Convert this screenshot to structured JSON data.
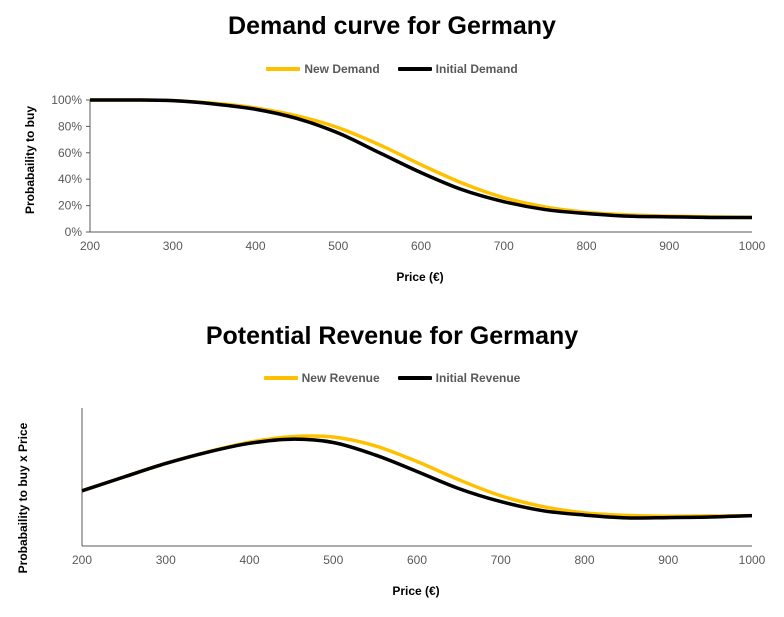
{
  "colors": {
    "new": "#FFC000",
    "initial": "#000000",
    "axis": "#595959"
  },
  "chart_data": [
    {
      "type": "line",
      "title": "Demand curve for Germany",
      "xlabel": "Price (€)",
      "ylabel": "Probabaility to buy",
      "xlim": [
        200,
        1000
      ],
      "ylim": [
        0,
        100
      ],
      "x_ticks": [
        "200",
        "300",
        "400",
        "500",
        "600",
        "700",
        "800",
        "900",
        "1000"
      ],
      "y_ticks": [
        "0%",
        "20%",
        "40%",
        "60%",
        "80%",
        "100%"
      ],
      "grid": false,
      "legend": "top",
      "series": [
        {
          "name": "New Demand",
          "x": [
            200,
            250,
            300,
            350,
            400,
            450,
            500,
            550,
            600,
            650,
            700,
            750,
            800,
            850,
            900,
            950,
            1000
          ],
          "values": [
            100,
            100,
            99.5,
            97.5,
            94,
            88,
            79,
            66,
            51,
            37,
            26,
            19,
            15,
            13,
            12,
            11.5,
            11
          ]
        },
        {
          "name": "Initial Demand",
          "x": [
            200,
            250,
            300,
            350,
            400,
            450,
            500,
            550,
            600,
            650,
            700,
            750,
            800,
            850,
            900,
            950,
            1000
          ],
          "values": [
            100,
            100,
            99.5,
            97,
            93,
            86,
            75,
            60,
            45,
            32,
            23,
            17,
            14,
            12,
            11.5,
            11,
            11
          ]
        }
      ]
    },
    {
      "type": "line",
      "title": "Potential Revenue for Germany",
      "xlabel": "Price (€)",
      "ylabel": "Probabaility to buy x Price",
      "xlim": [
        200,
        1000
      ],
      "ylim": [
        0,
        500
      ],
      "x_ticks": [
        "200",
        "300",
        "400",
        "500",
        "600",
        "700",
        "800",
        "900",
        "1000"
      ],
      "y_ticks": [],
      "grid": false,
      "legend": "top",
      "series": [
        {
          "name": "New Revenue",
          "x": [
            200,
            250,
            300,
            350,
            400,
            450,
            500,
            550,
            600,
            650,
            700,
            750,
            800,
            850,
            900,
            950,
            1000
          ],
          "values": [
            200,
            250,
            299,
            341,
            376,
            396,
            395,
            363,
            306,
            240,
            182,
            143,
            120,
            111,
            108,
            109,
            110
          ]
        },
        {
          "name": "Initial Revenue",
          "x": [
            200,
            250,
            300,
            350,
            400,
            450,
            500,
            550,
            600,
            650,
            700,
            750,
            800,
            850,
            900,
            950,
            1000
          ],
          "values": [
            200,
            250,
            299,
            340,
            372,
            387,
            375,
            330,
            270,
            208,
            161,
            128,
            112,
            102,
            103,
            105,
            110
          ]
        }
      ]
    }
  ]
}
